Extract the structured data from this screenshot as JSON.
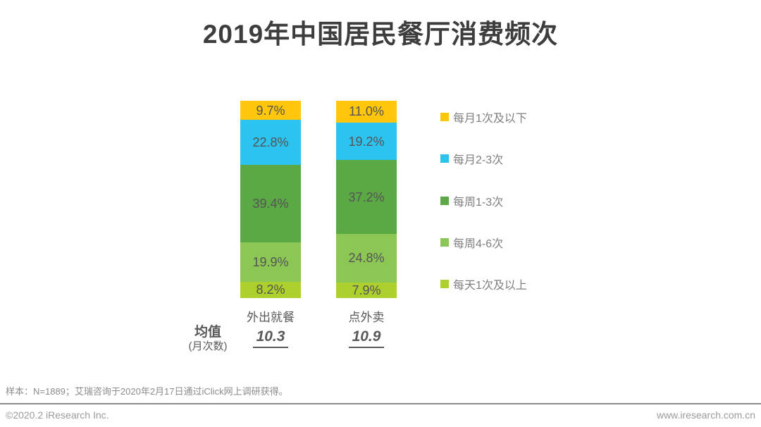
{
  "title": "2019年中国居民餐厅消费频次",
  "chart_data": {
    "type": "bar",
    "stacked": true,
    "unit": "%",
    "title": "2019年中国居民餐厅消费频次",
    "categories": [
      "外出就餐",
      "点外卖"
    ],
    "series": [
      {
        "name": "每月1次及以下",
        "color": "#FFC60B",
        "values": [
          9.7,
          11.0
        ],
        "value_labels": [
          "9.7%",
          "11.0%"
        ]
      },
      {
        "name": "每月2-3次",
        "color": "#2DC3F0",
        "values": [
          22.8,
          19.2
        ],
        "value_labels": [
          "22.8%",
          "19.2%"
        ]
      },
      {
        "name": "每周1-3次",
        "color": "#5AA945",
        "values": [
          39.4,
          37.2
        ],
        "value_labels": [
          "39.4%",
          "37.2%"
        ]
      },
      {
        "name": "每周4-6次",
        "color": "#8CC655",
        "values": [
          19.9,
          24.8
        ],
        "value_labels": [
          "19.9%",
          "24.8%"
        ]
      },
      {
        "name": "每天1次及以上",
        "color": "#ADD02F",
        "values": [
          8.2,
          7.9
        ],
        "value_labels": [
          "8.2%",
          "7.9%"
        ]
      }
    ],
    "ylim": [
      0,
      100
    ],
    "grid": false,
    "legend_position": "right"
  },
  "averages": {
    "label": "均值",
    "sublabel": "(月次数)",
    "values": [
      "10.3",
      "10.9"
    ]
  },
  "footnote": "样本：N=1889；艾瑞咨询于2020年2月17日通过iClick网上调研获得。",
  "footer": {
    "copyright": "©2020.2 iResearch Inc.",
    "website": "www.iresearch.com.cn"
  }
}
